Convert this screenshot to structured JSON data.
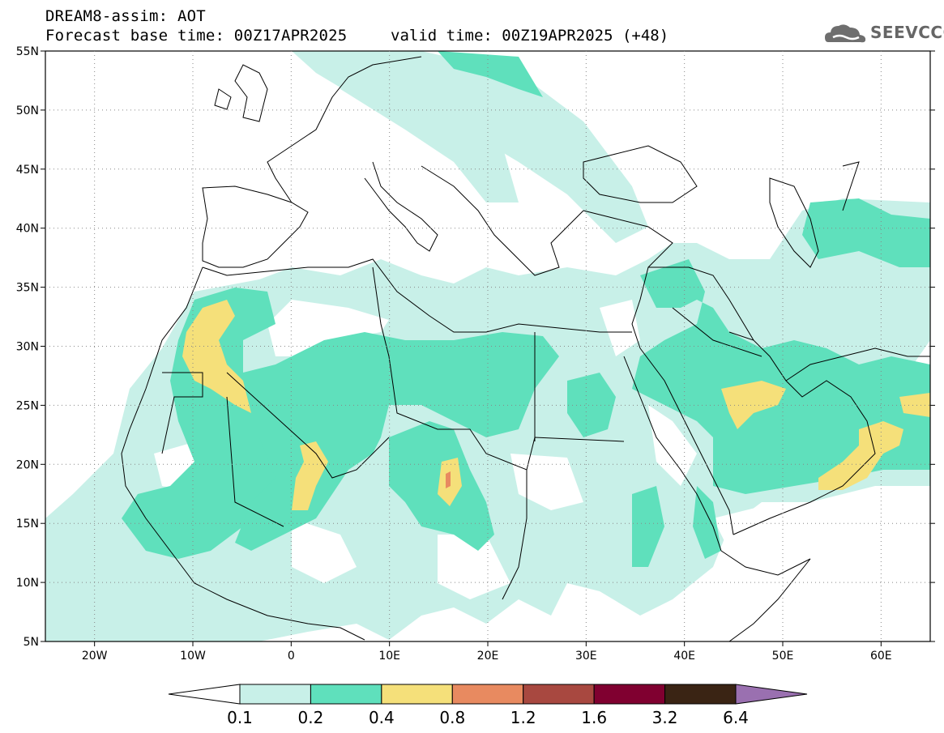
{
  "header": {
    "title": "DREAM8-assim: AOT",
    "base_time": "Forecast base time: 00Z17APR2025",
    "valid_time": "valid time: 00Z19APR2025 (+48)"
  },
  "logo": {
    "text": "SEEVCCC",
    "icon": "cloud-logo-icon"
  },
  "map": {
    "lon_range": [
      -25,
      65
    ],
    "lat_range": [
      5,
      55
    ],
    "lat_labels": [
      "55N",
      "50N",
      "45N",
      "40N",
      "35N",
      "30N",
      "25N",
      "20N",
      "15N",
      "10N",
      "5N"
    ],
    "lat_values": [
      55,
      50,
      45,
      40,
      35,
      30,
      25,
      20,
      15,
      10,
      5
    ],
    "lon_labels": [
      "20W",
      "10W",
      "0",
      "10E",
      "20E",
      "30E",
      "40E",
      "50E",
      "60E"
    ],
    "lon_values": [
      -20,
      -10,
      0,
      10,
      20,
      30,
      40,
      50,
      60
    ],
    "grid": "dotted"
  },
  "colorbar": {
    "levels": [
      "0.1",
      "0.2",
      "0.4",
      "0.8",
      "1.2",
      "1.6",
      "3.2",
      "6.4"
    ],
    "colors": [
      "#c8f0e8",
      "#5fe0bc",
      "#f5e07a",
      "#e88a60",
      "#a84840",
      "#800030",
      "#3a2414",
      "#9a70b0"
    ],
    "below_color": "#ffffff"
  },
  "colors": {
    "aot_01": "#c8f0e8",
    "aot_02": "#5fe0bc",
    "aot_04": "#f5e07a",
    "aot_08": "#e88a60"
  }
}
